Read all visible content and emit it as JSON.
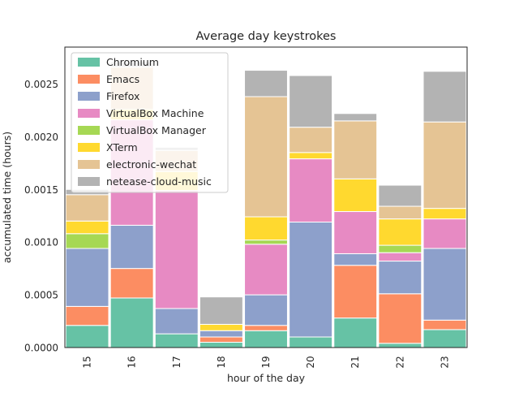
{
  "chart_data": {
    "type": "bar",
    "stacked": true,
    "title": "Average day keystrokes",
    "xlabel": "hour of the day",
    "ylabel": "accumulated time (hours)",
    "categories": [
      "15",
      "16",
      "17",
      "18",
      "19",
      "20",
      "21",
      "22",
      "23"
    ],
    "ylim": [
      0,
      0.00285
    ],
    "yticks": [
      "0.0000",
      "0.0005",
      "0.0010",
      "0.0015",
      "0.0020",
      "0.0025"
    ],
    "ytick_values": [
      0,
      0.0005,
      0.001,
      0.0015,
      0.002,
      0.0025
    ],
    "grid": false,
    "legend_position": "top-left",
    "series": [
      {
        "name": "Chromium",
        "color": "#66c2a5",
        "values": [
          0.00021,
          0.00047,
          0.00013,
          5e-05,
          0.00016,
          0.0001,
          0.00028,
          4e-05,
          0.00017
        ]
      },
      {
        "name": "Emacs",
        "color": "#fc8d62",
        "values": [
          0.00018,
          0.00028,
          0.0,
          5e-05,
          5e-05,
          0.0,
          0.0005,
          0.00047,
          9e-05
        ]
      },
      {
        "name": "Firefox",
        "color": "#8da0cb",
        "values": [
          0.00055,
          0.00041,
          0.00024,
          6e-05,
          0.00029,
          0.00109,
          0.00011,
          0.00031,
          0.00068
        ]
      },
      {
        "name": "VirtualBox Machine",
        "color": "#e78ac3",
        "values": [
          0.0,
          0.001,
          0.00112,
          0.0,
          0.00048,
          0.0006,
          0.0004,
          8e-05,
          0.00028
        ]
      },
      {
        "name": "VirtualBox Manager",
        "color": "#a6d854",
        "values": [
          0.00014,
          0.0,
          0.0,
          0.0,
          4e-05,
          0.0,
          0.0,
          7e-05,
          0.0
        ]
      },
      {
        "name": "XTerm",
        "color": "#ffd92f",
        "values": [
          0.00012,
          0.0001,
          0.00018,
          6e-05,
          0.00022,
          6e-05,
          0.00031,
          0.00025,
          0.0001
        ]
      },
      {
        "name": "electronic-wechat",
        "color": "#e5c494",
        "values": [
          0.00025,
          0.0004,
          0.0002,
          0.0,
          0.00114,
          0.00024,
          0.00055,
          0.00012,
          0.00082
        ]
      },
      {
        "name": "netease-cloud-music",
        "color": "#b3b3b3",
        "values": [
          5e-05,
          5e-05,
          3e-05,
          0.00026,
          0.00025,
          0.00049,
          7e-05,
          0.0002,
          0.00048
        ]
      }
    ]
  }
}
